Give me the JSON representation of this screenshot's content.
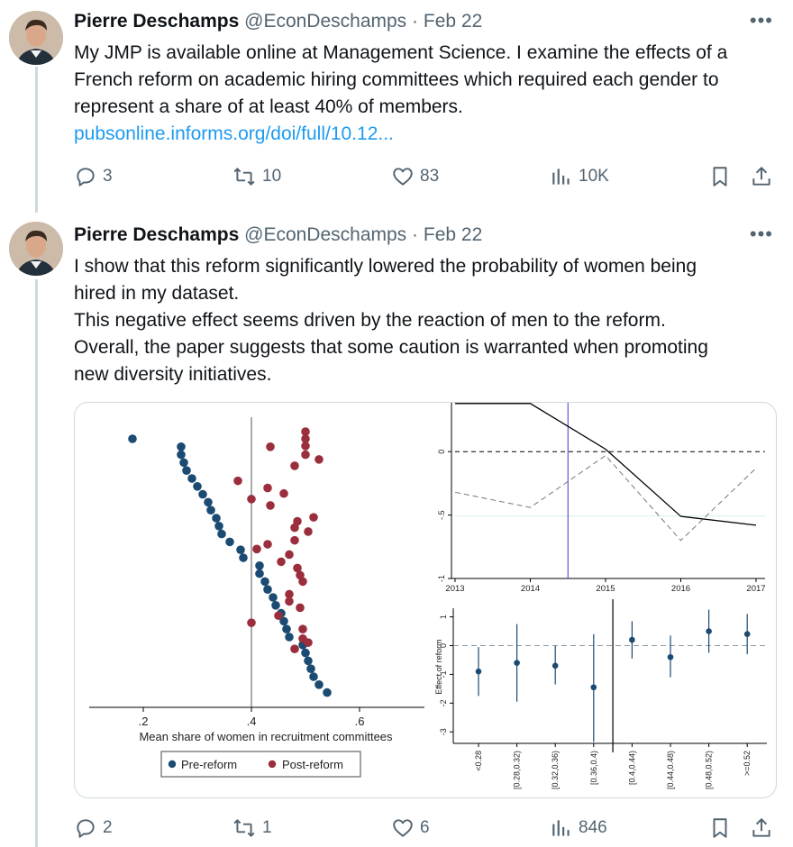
{
  "tweets": [
    {
      "author_name": "Pierre Deschamps",
      "handle": "@EconDeschamps",
      "date": "Feb 22",
      "text_lines": [
        "My JMP is available online at Management Science. I examine the effects of a",
        "French reform on academic hiring committees which required  each gender to",
        "represent a share of at least 40% of members."
      ],
      "link_text": "pubsonline.informs.org/doi/full/10.12...",
      "replies": "3",
      "retweets": "10",
      "likes": "83",
      "views": "10K"
    },
    {
      "author_name": "Pierre Deschamps",
      "handle": "@EconDeschamps",
      "date": "Feb 22",
      "text_lines": [
        "I show that this reform significantly lowered the probability of women being",
        "hired in my dataset.",
        "This negative effect seems driven by the reaction of men to the reform.",
        "Overall, the paper suggests that some caution is warranted when promoting",
        "new diversity initiatives."
      ],
      "replies": "2",
      "retweets": "1",
      "likes": "6",
      "views": "846"
    }
  ],
  "separator": "·",
  "more_glyph": "•••",
  "icons": [
    "reply-icon",
    "retweet-icon",
    "like-icon",
    "views-icon",
    "bookmark-icon",
    "share-icon",
    "more-icon"
  ],
  "colors": {
    "link": "#1d9bf0",
    "muted": "#536471",
    "pre_reform": "#1b4a72",
    "post_reform": "#9b2e3c"
  },
  "chart_data": [
    {
      "type": "scatter",
      "xlabel": "Mean share of women in recruitment committees",
      "ylabel": "",
      "xticks": [
        ".2",
        ".4",
        ".6"
      ],
      "xlim": [
        0.1,
        0.72
      ],
      "vline": 0.4,
      "legend": [
        "Pre-reform",
        "Post-reform"
      ],
      "legend_position": "bottom",
      "series": [
        {
          "name": "Pre-reform",
          "points": [
            [
              0.18,
              1
            ],
            [
              0.27,
              2
            ],
            [
              0.27,
              3
            ],
            [
              0.275,
              4
            ],
            [
              0.28,
              5
            ],
            [
              0.29,
              6
            ],
            [
              0.3,
              7
            ],
            [
              0.31,
              8
            ],
            [
              0.32,
              9
            ],
            [
              0.325,
              10
            ],
            [
              0.335,
              11
            ],
            [
              0.34,
              12
            ],
            [
              0.345,
              13
            ],
            [
              0.36,
              14
            ],
            [
              0.38,
              15
            ],
            [
              0.385,
              16
            ],
            [
              0.415,
              17
            ],
            [
              0.415,
              18
            ],
            [
              0.425,
              19
            ],
            [
              0.43,
              20
            ],
            [
              0.44,
              21
            ],
            [
              0.445,
              22
            ],
            [
              0.455,
              23
            ],
            [
              0.46,
              24
            ],
            [
              0.465,
              25
            ],
            [
              0.47,
              26
            ],
            [
              0.495,
              27
            ],
            [
              0.5,
              28
            ],
            [
              0.505,
              29
            ],
            [
              0.51,
              30
            ],
            [
              0.515,
              31
            ],
            [
              0.525,
              32
            ],
            [
              0.54,
              33
            ]
          ]
        },
        {
          "name": "Post-reform",
          "points": [
            [
              0.5,
              0.1
            ],
            [
              0.5,
              1
            ],
            [
              0.435,
              2
            ],
            [
              0.5,
              1.9
            ],
            [
              0.5,
              3
            ],
            [
              0.525,
              3.6
            ],
            [
              0.48,
              4.4
            ],
            [
              0.375,
              6.3
            ],
            [
              0.43,
              7.2
            ],
            [
              0.46,
              7.9
            ],
            [
              0.4,
              8.6
            ],
            [
              0.435,
              9.4
            ],
            [
              0.515,
              10.9
            ],
            [
              0.485,
              11.4
            ],
            [
              0.48,
              12.2
            ],
            [
              0.505,
              12.7
            ],
            [
              0.48,
              13.8
            ],
            [
              0.43,
              14.3
            ],
            [
              0.41,
              14.9
            ],
            [
              0.47,
              15.6
            ],
            [
              0.455,
              16.5
            ],
            [
              0.485,
              17.3
            ],
            [
              0.49,
              18.2
            ],
            [
              0.495,
              19
            ],
            [
              0.47,
              20.6
            ],
            [
              0.47,
              21.5
            ],
            [
              0.49,
              22.3
            ],
            [
              0.45,
              23.3
            ],
            [
              0.4,
              24.2
            ],
            [
              0.495,
              25
            ],
            [
              0.495,
              26.2
            ],
            [
              0.505,
              26.7
            ],
            [
              0.48,
              27.5
            ]
          ]
        }
      ]
    },
    {
      "type": "line",
      "x": [
        2013,
        2014,
        2015,
        2016,
        2017
      ],
      "xticks": [
        "2013",
        "2014",
        "2015",
        "2016",
        "2017"
      ],
      "yticks": [
        "0",
        "-.5",
        "-1"
      ],
      "ylim": [
        -1.0,
        0.4
      ],
      "xlim": [
        2013,
        2017
      ],
      "hline": 0,
      "vline": 2014.5,
      "series": [
        {
          "style": "solid",
          "values": [
            0.38,
            0.38,
            0.02,
            -0.51,
            -0.58
          ]
        },
        {
          "style": "dashed",
          "values": [
            -0.32,
            -0.44,
            -0.03,
            -0.7,
            -0.13
          ]
        }
      ]
    },
    {
      "type": "scatter",
      "ylabel": "Effect of reform",
      "categories": [
        "<0.28",
        "[0.28,0.32)",
        "[0.32,0.36)",
        "[0.36,0.4)",
        "[0.4,0.44)",
        "[0.44,0.48)",
        "[0.48,0.52)",
        ">=0.52"
      ],
      "yticks": [
        "1",
        "0",
        "-1",
        "-2",
        "-3"
      ],
      "ylim": [
        -3.4,
        1.3
      ],
      "hline": 0,
      "vline_between": [
        3,
        4
      ],
      "estimates": [
        -0.9,
        -0.6,
        -0.7,
        -1.45,
        0.2,
        -0.4,
        0.5,
        0.4
      ],
      "ci_low": [
        -1.75,
        -1.95,
        -1.35,
        -3.35,
        -0.45,
        -1.1,
        -0.25,
        -0.3
      ],
      "ci_high": [
        -0.05,
        0.75,
        0.0,
        0.4,
        0.85,
        0.35,
        1.25,
        1.1
      ]
    }
  ]
}
